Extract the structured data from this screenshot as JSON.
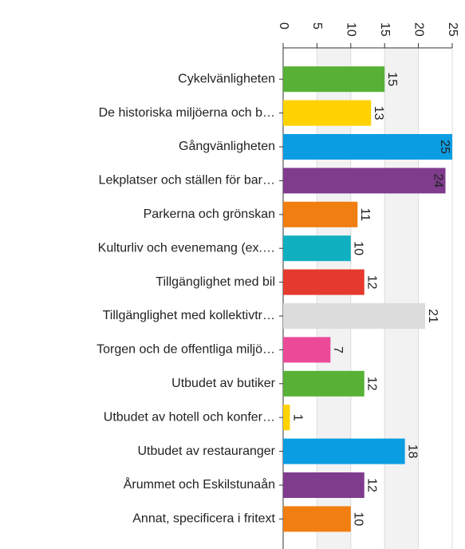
{
  "chart_data": {
    "type": "bar",
    "orientation": "horizontal",
    "categories": [
      "Cykelvänligheten",
      "De historiska miljöerna och b…",
      "Gångvänligheten",
      "Lekplatser och ställen för bar…",
      "Parkerna och grönskan",
      "Kulturliv och evenemang (ex.…",
      "Tillgänglighet med bil",
      "Tillgänglighet med kollektivtr…",
      "Torgen och de offentliga miljö…",
      "Utbudet av butiker",
      "Utbudet av hotell och konfer…",
      "Utbudet av restauranger",
      "Årummet och Eskilstunaån",
      "Annat, specificera i fritext"
    ],
    "values": [
      15,
      13,
      25,
      24,
      11,
      10,
      12,
      21,
      7,
      12,
      1,
      18,
      12,
      10
    ],
    "colors": [
      "#57b135",
      "#ffd200",
      "#0b9de2",
      "#7f3c8d",
      "#f07e10",
      "#11b0c0",
      "#e53a2d",
      "#dcdcdc",
      "#ec4a98",
      "#57b135",
      "#ffd200",
      "#0b9de2",
      "#7f3c8d",
      "#f07e10"
    ],
    "xlim": [
      0,
      25
    ],
    "xticks": [
      0,
      5,
      10,
      15,
      20,
      25
    ],
    "grid": true
  }
}
